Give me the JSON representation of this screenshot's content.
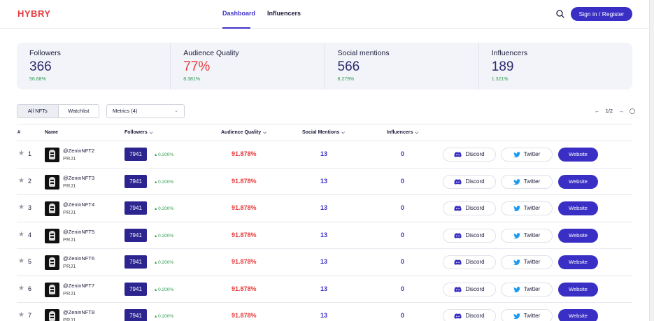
{
  "header": {
    "logo": "HYBRY",
    "tabs": [
      {
        "label": "Dashboard",
        "active": true
      },
      {
        "label": "Influencers",
        "active": false
      }
    ],
    "search_icon": "search-icon",
    "signin_label": "Sign in / Register"
  },
  "stats": [
    {
      "label": "Followers",
      "value": "366",
      "delta": "56.68%"
    },
    {
      "label": "Audience Quality",
      "value": "77%",
      "delta": "8.381%"
    },
    {
      "label": "Social mentions",
      "value": "566",
      "delta": "8.279%"
    },
    {
      "label": "Influencers",
      "value": "189",
      "delta": "1.321%"
    }
  ],
  "toolbar": {
    "segments": [
      "All NFTs",
      "Watchlist"
    ],
    "metrics_label": "Metrics (4)",
    "pager_text": "1/2"
  },
  "table": {
    "headers": {
      "idx": "#",
      "name": "Name",
      "followers": "Followers",
      "audience_quality": "Audience Quality",
      "social_mentions": "Social Mentions",
      "influencers": "Influencers"
    },
    "rows": [
      {
        "idx": "1",
        "name": "@ZeninNFT2",
        "project": "PRJ1",
        "followers": "7941",
        "delta": "0.200%",
        "aq": "91.878%",
        "sm": "13",
        "inf": "0",
        "discord": "Discord",
        "twitter": "Twitter",
        "website": "Website"
      },
      {
        "idx": "2",
        "name": "@ZeninNFT3",
        "project": "PRJ1",
        "followers": "7941",
        "delta": "0.200%",
        "aq": "91.878%",
        "sm": "13",
        "inf": "0",
        "discord": "Discord",
        "twitter": "Twitter",
        "website": "Website"
      },
      {
        "idx": "3",
        "name": "@ZeninNFT4",
        "project": "PRJ1",
        "followers": "7941",
        "delta": "0.200%",
        "aq": "91.878%",
        "sm": "13",
        "inf": "0",
        "discord": "Discord",
        "twitter": "Twitter",
        "website": "Website"
      },
      {
        "idx": "4",
        "name": "@ZeninNFT5",
        "project": "PRJ1",
        "followers": "7941",
        "delta": "0.200%",
        "aq": "91.878%",
        "sm": "13",
        "inf": "0",
        "discord": "Discord",
        "twitter": "Twitter",
        "website": "Website"
      },
      {
        "idx": "5",
        "name": "@ZeninNFT6",
        "project": "PRJ1",
        "followers": "7941",
        "delta": "0.200%",
        "aq": "91.878%",
        "sm": "13",
        "inf": "0",
        "discord": "Discord",
        "twitter": "Twitter",
        "website": "Website"
      },
      {
        "idx": "6",
        "name": "@ZeninNFT7",
        "project": "PRJ1",
        "followers": "7941",
        "delta": "0.200%",
        "aq": "91.878%",
        "sm": "13",
        "inf": "0",
        "discord": "Discord",
        "twitter": "Twitter",
        "website": "Website"
      },
      {
        "idx": "7",
        "name": "@ZeninNFT8",
        "project": "PRJ1",
        "followers": "7941",
        "delta": "0.200%",
        "aq": "91.878%",
        "sm": "13",
        "inf": "0",
        "discord": "Discord",
        "twitter": "Twitter",
        "website": "Website"
      }
    ]
  },
  "colors": {
    "accent": "#3a2fc4",
    "brand_red": "#e5383b",
    "positive": "#2e9b4f"
  }
}
